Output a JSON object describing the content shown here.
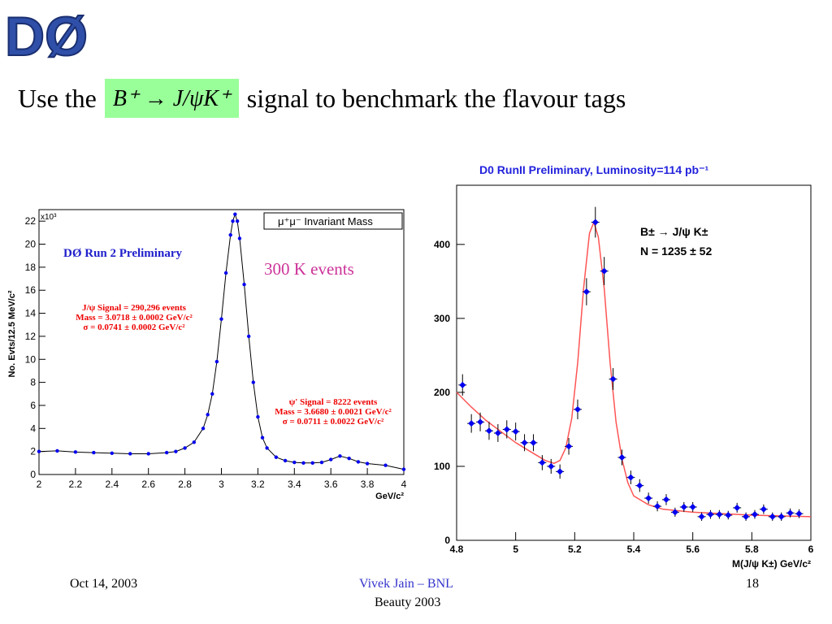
{
  "logo": {
    "text": "DØ"
  },
  "title": {
    "prefix": "Use the",
    "formula": "B⁺ → J/ψK⁺",
    "suffix": "signal to benchmark the flavour tags"
  },
  "colors": {
    "formula_bg": "#99ff99",
    "left_points": "#0000ee",
    "right_curve": "#ff5555",
    "annotation_red": "#ee0000",
    "events_label": "#cc3399"
  },
  "left_panel": {
    "exponent_label": "x10³",
    "events_label": "300 K events"
  },
  "right_panel": {
    "header": "D0 RunII  Preliminary, Luminosity=114 pb⁻¹"
  },
  "chart_data": [
    {
      "type": "scatter",
      "title": "μ⁺μ⁻ Invariant Mass",
      "subtitle": "DØ  Run 2 Preliminary",
      "xlabel": "GeV/c²",
      "ylabel": "No. Evts/12.5 MeV/c²",
      "xlim": [
        2,
        4
      ],
      "ylim": [
        0,
        23
      ],
      "xticks": [
        2,
        2.2,
        2.4,
        2.6,
        2.8,
        3,
        3.2,
        3.4,
        3.6,
        3.8,
        4
      ],
      "yticks": [
        0,
        2,
        4,
        6,
        8,
        10,
        12,
        14,
        16,
        18,
        20,
        22
      ],
      "y_multiplier_label": "x10³",
      "annotations": [
        [
          "J/ψ Signal = 290,296 events",
          "Mass = 3.0718 ± 0.0002 GeV/c²",
          "σ = 0.0741 ± 0.0002 GeV/c²"
        ],
        [
          "ψ' Signal = 8222 events",
          "Mass = 3.6680 ± 0.0021 GeV/c²",
          "σ = 0.0711 ±  0.0022 GeV/c²"
        ]
      ],
      "series": [
        {
          "name": "Data",
          "x": [
            2.0,
            2.1,
            2.2,
            2.3,
            2.4,
            2.5,
            2.6,
            2.7,
            2.75,
            2.8,
            2.85,
            2.9,
            2.925,
            2.95,
            2.975,
            3.0,
            3.025,
            3.05,
            3.0625,
            3.075,
            3.0875,
            3.1,
            3.125,
            3.15,
            3.175,
            3.2,
            3.225,
            3.25,
            3.3,
            3.35,
            3.4,
            3.45,
            3.5,
            3.55,
            3.6,
            3.65,
            3.7,
            3.75,
            3.8,
            3.9,
            4.0
          ],
          "y": [
            2.0,
            2.05,
            1.95,
            1.9,
            1.85,
            1.8,
            1.8,
            1.9,
            2.0,
            2.3,
            2.8,
            4.0,
            5.2,
            7.0,
            9.8,
            13.5,
            17.5,
            20.8,
            22.0,
            22.6,
            22.0,
            20.5,
            16.5,
            12.0,
            8.0,
            5.0,
            3.2,
            2.3,
            1.5,
            1.2,
            1.05,
            1.0,
            1.0,
            1.05,
            1.3,
            1.6,
            1.4,
            1.1,
            0.95,
            0.8,
            0.45
          ]
        }
      ]
    },
    {
      "type": "scatter",
      "title": "D0 RunII  Preliminary, Luminosity=114 pb⁻¹",
      "xlabel": "M(J/ψ K±) GeV/c²",
      "xlim": [
        4.8,
        6.0
      ],
      "ylim": [
        0,
        480
      ],
      "xticks": [
        4.8,
        5,
        5.2,
        5.4,
        5.6,
        5.8,
        6
      ],
      "yticks": [
        0,
        100,
        200,
        300,
        400
      ],
      "annotations": [
        "B± → J/ψ K±",
        "N =  1235 ± 52"
      ],
      "series": [
        {
          "name": "Data",
          "x": [
            4.82,
            4.85,
            4.88,
            4.91,
            4.94,
            4.97,
            5.0,
            5.03,
            5.06,
            5.09,
            5.12,
            5.15,
            5.18,
            5.21,
            5.24,
            5.27,
            5.3,
            5.33,
            5.36,
            5.39,
            5.42,
            5.45,
            5.48,
            5.51,
            5.54,
            5.57,
            5.6,
            5.63,
            5.66,
            5.69,
            5.72,
            5.75,
            5.78,
            5.81,
            5.84,
            5.87,
            5.9,
            5.93,
            5.96
          ],
          "y": [
            210,
            158,
            160,
            148,
            145,
            150,
            147,
            132,
            132,
            105,
            100,
            93,
            127,
            177,
            336,
            430,
            364,
            218,
            112,
            85,
            74,
            57,
            46,
            55,
            38,
            45,
            45,
            32,
            35,
            35,
            34,
            44,
            32,
            35,
            42,
            32,
            32,
            37,
            36
          ]
        },
        {
          "name": "Fit",
          "x": [
            4.8,
            4.85,
            4.9,
            4.95,
            5.0,
            5.05,
            5.1,
            5.13,
            5.15,
            5.17,
            5.19,
            5.21,
            5.23,
            5.25,
            5.265,
            5.28,
            5.3,
            5.32,
            5.34,
            5.36,
            5.38,
            5.4,
            5.45,
            5.5,
            5.6,
            5.7,
            5.8,
            5.9,
            6.0
          ],
          "y": [
            200,
            180,
            162,
            147,
            132,
            120,
            108,
            104,
            108,
            125,
            165,
            240,
            340,
            415,
            430,
            410,
            340,
            240,
            160,
            110,
            78,
            60,
            48,
            42,
            38,
            36,
            34,
            33,
            32
          ]
        }
      ]
    }
  ],
  "footer": {
    "date": "Oct 14, 2003",
    "author": "Vivek Jain – BNL",
    "conference": "Beauty 2003",
    "page": "18"
  }
}
